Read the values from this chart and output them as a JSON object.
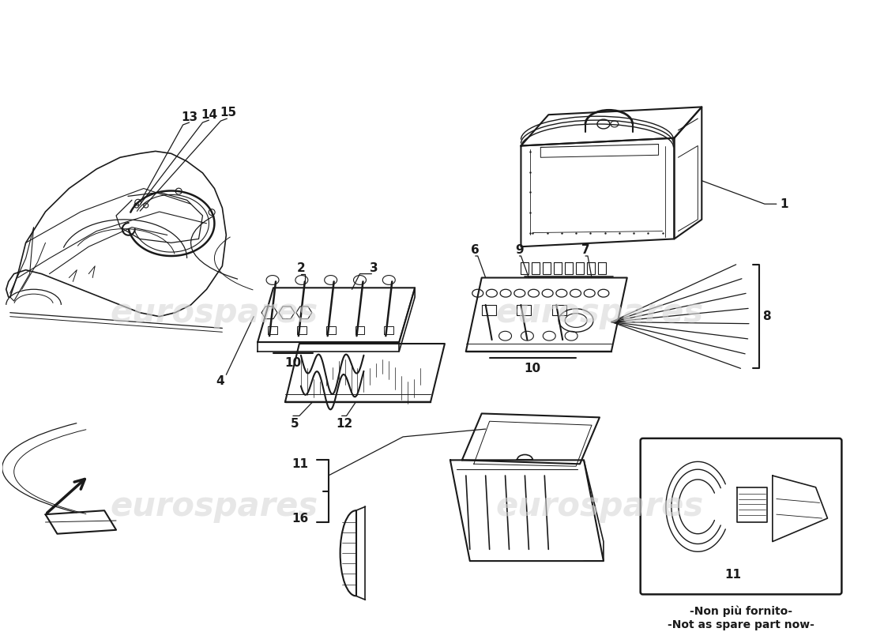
{
  "background_color": "#ffffff",
  "line_color": "#1a1a1a",
  "watermark_color": "#d8d8d8",
  "watermark_text": "eurospares",
  "note_line1": "-Non più fornito-",
  "note_line2": "-Not as spare part now-"
}
